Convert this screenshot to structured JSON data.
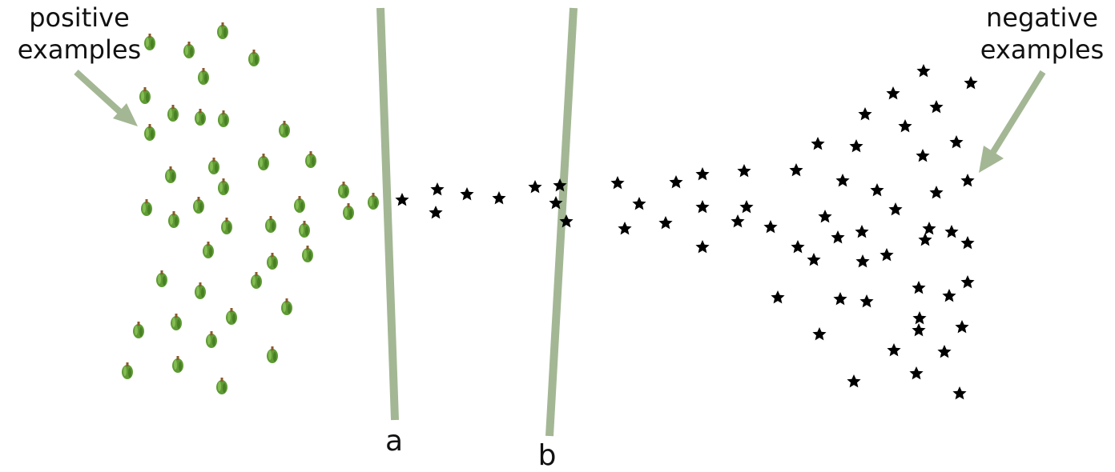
{
  "labels": {
    "positive_line1": "positive",
    "positive_line2": "examples",
    "negative_line1": "negative",
    "negative_line2": "examples",
    "line_a": "a",
    "line_b": "b"
  },
  "icons": {
    "positive_marker": "green-pepper-icon",
    "negative_marker": "star-icon"
  },
  "colors": {
    "separator_line": "#a3b794",
    "arrow": "#a3b794",
    "pepper_body": "#5f9a34",
    "pepper_stem": "#8a5a2b",
    "star": "#000000"
  }
}
